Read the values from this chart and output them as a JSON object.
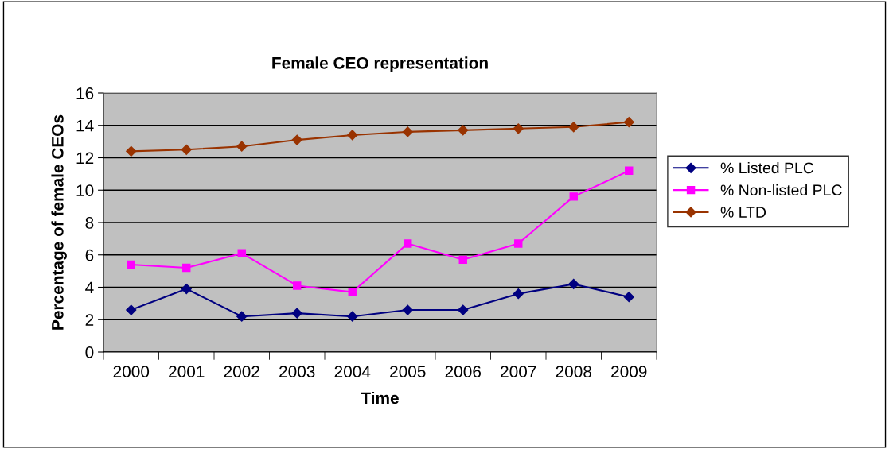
{
  "chart_data": {
    "type": "line",
    "title": "Female CEO representation",
    "xlabel": "Time",
    "ylabel": "Percentage of female CEOs",
    "categories": [
      "2000",
      "2001",
      "2002",
      "2003",
      "2004",
      "2005",
      "2006",
      "2007",
      "2008",
      "2009"
    ],
    "series": [
      {
        "name": "% Listed PLC",
        "color": "#000080",
        "marker": "diamond",
        "values": [
          2.6,
          3.9,
          2.2,
          2.4,
          2.2,
          2.6,
          2.6,
          3.6,
          4.2,
          3.4
        ]
      },
      {
        "name": "% Non-listed PLC",
        "color": "#ff00ff",
        "marker": "square",
        "values": [
          5.4,
          5.2,
          6.1,
          4.1,
          3.7,
          6.7,
          5.7,
          6.7,
          9.6,
          11.2
        ]
      },
      {
        "name": "% LTD",
        "color": "#993300",
        "marker": "diamond",
        "values": [
          12.4,
          12.5,
          12.7,
          13.1,
          13.4,
          13.6,
          13.7,
          13.8,
          13.9,
          14.2
        ]
      }
    ],
    "ylim": [
      0,
      16
    ],
    "yticks": [
      0,
      2,
      4,
      6,
      8,
      10,
      12,
      14,
      16
    ],
    "grid": "y",
    "legend": "right"
  }
}
